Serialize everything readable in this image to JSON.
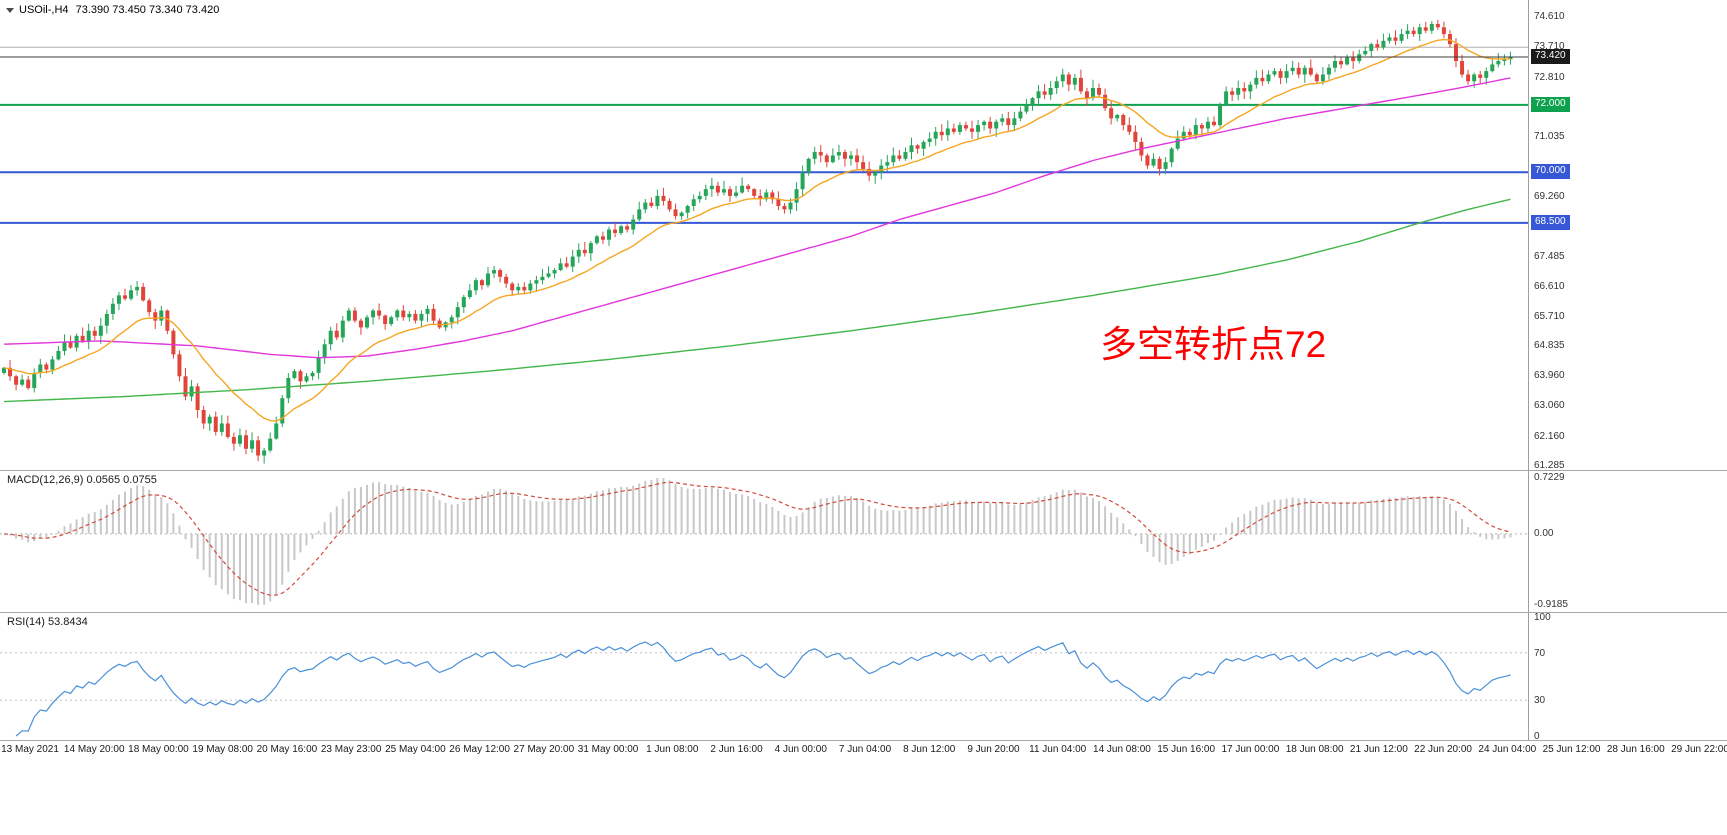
{
  "header": {
    "symbol": "USOil-,H4",
    "ohlc": "73.390 73.450 73.340 73.420"
  },
  "annotation": {
    "text": "多空转折点72",
    "color": "#ff0000"
  },
  "colors": {
    "up": "#25a55a",
    "down": "#e0443a",
    "ma_fast": "#f5a623",
    "ma_mid": "#e236dd",
    "ma_slow": "#43b649",
    "level_green": "#0fa24e",
    "level_blue": "#3657d6",
    "current_line": "#3c3c3c",
    "macd_hist": "#c8c8c8",
    "macd_signal": "#d24a3d",
    "rsi_line": "#4a90d9"
  },
  "current_price": 73.42,
  "badges": [
    {
      "text": "73.420",
      "value": 73.42,
      "bg": "#1b1b1b"
    },
    {
      "text": "72.000",
      "value": 72.0,
      "bg": "#0fa24e"
    },
    {
      "text": "70.000",
      "value": 70.0,
      "bg": "#3657d6"
    },
    {
      "text": "68.500",
      "value": 68.5,
      "bg": "#3657d6"
    }
  ],
  "price_axis": {
    "labels": [
      {
        "text": "74.610",
        "value": 74.61
      },
      {
        "text": "73.710",
        "value": 73.71
      },
      {
        "text": "72.810",
        "value": 72.81
      },
      {
        "text": "71.035",
        "value": 71.035
      },
      {
        "text": "69.260",
        "value": 69.26
      },
      {
        "text": "67.485",
        "value": 67.485
      },
      {
        "text": "66.610",
        "value": 66.61
      },
      {
        "text": "65.710",
        "value": 65.71
      },
      {
        "text": "64.835",
        "value": 64.835
      },
      {
        "text": "63.960",
        "value": 63.96
      },
      {
        "text": "63.060",
        "value": 63.06
      },
      {
        "text": "62.160",
        "value": 62.16
      },
      {
        "text": "61.285",
        "value": 61.285
      }
    ]
  },
  "chart_data": {
    "type": "candlestick",
    "symbol": "USOil-",
    "timeframe": "H4",
    "title": "USOil-,H4",
    "ohlc_current": {
      "open": 73.39,
      "high": 73.45,
      "low": 73.34,
      "close": 73.42
    },
    "price_range": {
      "min": 61.17,
      "max": 75.11
    },
    "levels": [
      {
        "value": 73.71,
        "color": "#b0b0b0",
        "width": 1
      },
      {
        "value": 72.0,
        "color": "#0fa24e",
        "width": 2
      },
      {
        "value": 70.0,
        "color": "#3657d6",
        "width": 2
      },
      {
        "value": 68.5,
        "color": "#3657d6",
        "width": 2
      }
    ],
    "closes": [
      64.2,
      63.95,
      63.7,
      63.85,
      63.6,
      64.05,
      64.3,
      64.15,
      64.45,
      64.7,
      64.95,
      64.8,
      65.15,
      65.0,
      65.3,
      65.15,
      65.45,
      65.8,
      66.1,
      66.35,
      66.25,
      66.5,
      66.6,
      66.2,
      65.85,
      65.6,
      65.9,
      65.3,
      64.6,
      63.95,
      63.35,
      63.65,
      62.95,
      62.55,
      62.75,
      62.3,
      62.55,
      62.15,
      61.95,
      62.2,
      61.8,
      62.05,
      61.6,
      61.75,
      62.1,
      62.55,
      63.3,
      63.9,
      64.1,
      63.8,
      63.95,
      64.05,
      64.5,
      64.9,
      65.3,
      65.1,
      65.6,
      65.9,
      65.6,
      65.4,
      65.7,
      65.9,
      65.75,
      65.5,
      65.7,
      65.9,
      65.7,
      65.8,
      65.6,
      65.8,
      65.95,
      65.6,
      65.4,
      65.55,
      65.7,
      66.0,
      66.3,
      66.5,
      66.8,
      66.65,
      67.0,
      67.1,
      66.9,
      66.7,
      66.5,
      66.6,
      66.5,
      66.7,
      66.8,
      66.9,
      67.0,
      67.1,
      67.3,
      67.2,
      67.5,
      67.7,
      67.6,
      67.9,
      68.1,
      68.0,
      68.3,
      68.2,
      68.4,
      68.3,
      68.6,
      68.9,
      69.1,
      69.0,
      69.3,
      69.15,
      68.9,
      68.7,
      68.8,
      69.0,
      69.2,
      69.3,
      69.5,
      69.6,
      69.4,
      69.5,
      69.3,
      69.4,
      69.6,
      69.5,
      69.3,
      69.2,
      69.4,
      69.2,
      69.0,
      68.9,
      69.1,
      69.5,
      70.0,
      70.4,
      70.6,
      70.5,
      70.3,
      70.5,
      70.6,
      70.4,
      70.5,
      70.3,
      70.1,
      69.9,
      70.0,
      70.2,
      70.3,
      70.5,
      70.4,
      70.6,
      70.8,
      70.7,
      70.9,
      71.0,
      71.2,
      71.1,
      71.3,
      71.2,
      71.4,
      71.3,
      71.2,
      71.4,
      71.5,
      71.3,
      71.5,
      71.6,
      71.4,
      71.6,
      71.8,
      72.0,
      72.2,
      72.4,
      72.3,
      72.5,
      72.7,
      72.9,
      72.6,
      72.8,
      72.4,
      72.2,
      72.5,
      72.3,
      71.9,
      71.6,
      71.7,
      71.4,
      71.2,
      70.9,
      70.5,
      70.2,
      70.4,
      70.1,
      70.3,
      70.7,
      71.0,
      71.2,
      71.1,
      71.4,
      71.3,
      71.5,
      71.4,
      72.0,
      72.4,
      72.3,
      72.5,
      72.4,
      72.6,
      72.8,
      72.7,
      72.9,
      73.0,
      72.8,
      73.0,
      73.1,
      72.9,
      73.1,
      72.9,
      72.7,
      72.9,
      73.1,
      73.3,
      73.2,
      73.4,
      73.3,
      73.5,
      73.6,
      73.8,
      73.7,
      73.9,
      74.0,
      73.9,
      74.1,
      74.2,
      74.1,
      74.3,
      74.2,
      74.4,
      74.3,
      74.1,
      73.8,
      73.3,
      72.9,
      72.7,
      72.9,
      72.8,
      73.0,
      73.2,
      73.3,
      73.35,
      73.42
    ],
    "ma_fast_period": 16,
    "ma_mid_anchors": [
      [
        0,
        64.9
      ],
      [
        16,
        65.0
      ],
      [
        32,
        64.85
      ],
      [
        44,
        64.6
      ],
      [
        52,
        64.5
      ],
      [
        60,
        64.55
      ],
      [
        68,
        64.75
      ],
      [
        76,
        65.0
      ],
      [
        84,
        65.3
      ],
      [
        92,
        65.7
      ],
      [
        100,
        66.1
      ],
      [
        108,
        66.5
      ],
      [
        116,
        66.9
      ],
      [
        124,
        67.3
      ],
      [
        132,
        67.7
      ],
      [
        140,
        68.1
      ],
      [
        148,
        68.6
      ],
      [
        156,
        69.0
      ],
      [
        164,
        69.4
      ],
      [
        172,
        69.9
      ],
      [
        180,
        70.35
      ],
      [
        188,
        70.7
      ],
      [
        196,
        71.0
      ],
      [
        204,
        71.3
      ],
      [
        212,
        71.6
      ],
      [
        220,
        71.85
      ],
      [
        228,
        72.1
      ],
      [
        236,
        72.35
      ],
      [
        242,
        72.55
      ],
      [
        249,
        72.8
      ]
    ],
    "ma_slow_anchors": [
      [
        0,
        63.2
      ],
      [
        20,
        63.35
      ],
      [
        40,
        63.55
      ],
      [
        60,
        63.8
      ],
      [
        80,
        64.1
      ],
      [
        100,
        64.45
      ],
      [
        120,
        64.85
      ],
      [
        140,
        65.3
      ],
      [
        160,
        65.8
      ],
      [
        180,
        66.35
      ],
      [
        200,
        66.95
      ],
      [
        212,
        67.4
      ],
      [
        224,
        67.95
      ],
      [
        234,
        68.5
      ],
      [
        242,
        68.9
      ],
      [
        249,
        69.2
      ]
    ],
    "time_labels": [
      "13 May 2021",
      "14 May 20:00",
      "18 May 00:00",
      "19 May 08:00",
      "20 May 16:00",
      "23 May 23:00",
      "25 May 04:00",
      "26 May 12:00",
      "27 May 20:00",
      "31 May 00:00",
      "1 Jun 08:00",
      "2 Jun 16:00",
      "4 Jun 00:00",
      "7 Jun 04:00",
      "8 Jun 12:00",
      "9 Jun 20:00",
      "11 Jun 04:00",
      "14 Jun 08:00",
      "15 Jun 16:00",
      "17 Jun 00:00",
      "18 Jun 08:00",
      "21 Jun 12:00",
      "22 Jun 20:00",
      "24 Jun 04:00",
      "25 Jun 12:00",
      "28 Jun 16:00",
      "29 Jun 22:00"
    ],
    "macd": {
      "label": "MACD(12,26,9)",
      "current": "0.0565 0.0755",
      "fast": 12,
      "slow": 26,
      "signal": 9,
      "axis_max": 0.7229,
      "axis_min": -0.9185,
      "axis": [
        {
          "text": "0.7229",
          "value": 0.7229
        },
        {
          "text": "0.00",
          "value": 0
        },
        {
          "text": "-0.9185",
          "value": -0.9185
        }
      ]
    },
    "rsi": {
      "label": "RSI(14)",
      "current": "53.8434",
      "period": 14,
      "levels": [
        70,
        30
      ],
      "axis": [
        {
          "text": "100",
          "value": 100
        },
        {
          "text": "70",
          "value": 70
        },
        {
          "text": "30",
          "value": 30
        },
        {
          "text": "0",
          "value": 0
        }
      ]
    }
  }
}
